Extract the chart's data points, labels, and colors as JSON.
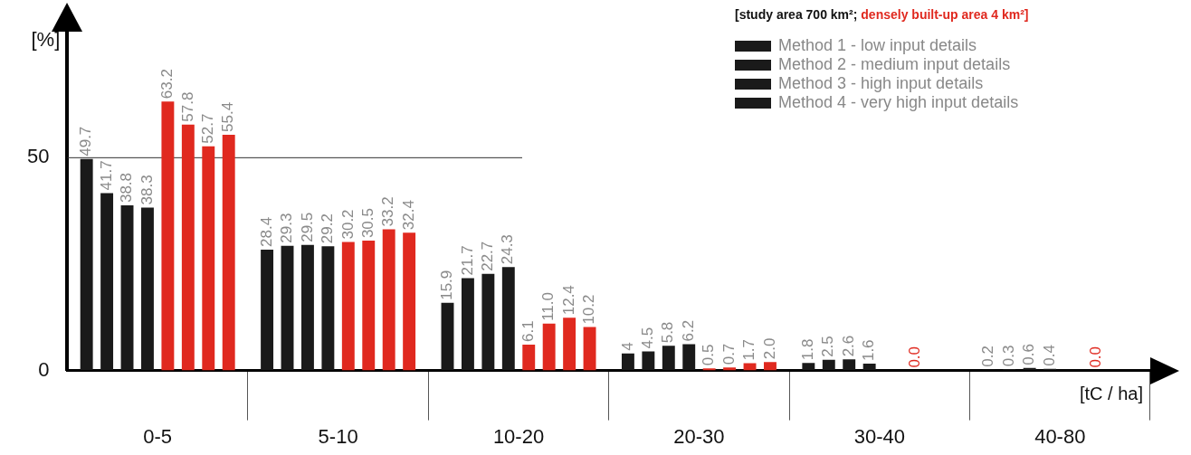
{
  "chart_data": {
    "type": "bar",
    "title": "[study area 700 km²;",
    "subtitle": "densely built-up area 4 km²]",
    "ylabel": "[%]",
    "xlabel": "[tC / ha]",
    "categories": [
      "0-5",
      "5-10",
      "10-20",
      "20-30",
      "30-40",
      "40-80"
    ],
    "ylim": [
      0,
      80
    ],
    "yticks": [
      0,
      50
    ],
    "legend": "top right",
    "ref_lines": [
      {
        "axis": "y",
        "value": 50,
        "color": "#333333"
      }
    ],
    "series": [
      {
        "name": "Method 1 - low input details",
        "color": "#1a1a1a",
        "values": [
          49.7,
          28.4,
          15.9,
          4,
          1.8,
          0.2
        ],
        "value_labels": [
          "49.7",
          "28.4",
          "15.9",
          "4",
          "1.8",
          "0.2"
        ]
      },
      {
        "name": "Method 2 - medium input details",
        "color": "#1a1a1a",
        "values": [
          41.7,
          29.3,
          21.7,
          4.5,
          2.5,
          0.3
        ],
        "value_labels": [
          "41.7",
          "29.3",
          "21.7",
          "4.5",
          "2.5",
          "0.3"
        ]
      },
      {
        "name": "Method 3 - high input details",
        "color": "#1a1a1a",
        "values": [
          38.8,
          29.5,
          22.7,
          5.8,
          2.6,
          0.6
        ],
        "value_labels": [
          "38.8",
          "29.5",
          "22.7",
          "5.8",
          "2.6",
          "0.6"
        ]
      },
      {
        "name": "Method 4 - very high input details",
        "color": "#1a1a1a",
        "values": [
          38.3,
          29.2,
          24.3,
          6.2,
          1.6,
          0.4
        ],
        "value_labels": [
          "38.3",
          "29.2",
          "24.3",
          "6.2",
          "1.6",
          "0.4"
        ]
      },
      {
        "color": "#e0291f",
        "values": [
          63.2,
          30.2,
          6.1,
          0.5,
          null,
          null
        ],
        "value_labels": [
          "63.2",
          "30.2",
          "6.1",
          "0.5",
          null,
          null
        ]
      },
      {
        "color": "#e0291f",
        "values": [
          57.8,
          30.5,
          11.0,
          0.7,
          null,
          null
        ],
        "value_labels": [
          "57.8",
          "30.5",
          "11.0",
          "0.7",
          null,
          null
        ]
      },
      {
        "color": "#e0291f",
        "values": [
          52.7,
          33.2,
          12.4,
          1.7,
          null,
          null
        ],
        "value_labels": [
          "52.7",
          "33.2",
          "12.4",
          "1.7",
          null,
          null
        ]
      },
      {
        "color": "#e0291f",
        "values": [
          55.4,
          32.4,
          10.2,
          2.0,
          null,
          null
        ],
        "value_labels": [
          "55.4",
          "32.4",
          "10.2",
          "2.0",
          null,
          null
        ]
      }
    ],
    "annotations": [
      {
        "text": "0.0",
        "x": "30-40",
        "y": 0
      },
      {
        "text": "0.0",
        "x": "40-80",
        "y": 0
      }
    ]
  }
}
